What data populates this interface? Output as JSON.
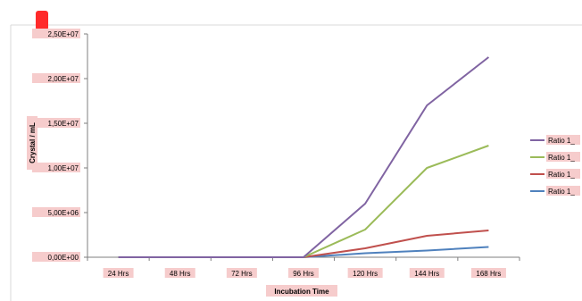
{
  "chart_data": {
    "type": "line",
    "title": "",
    "xlabel": "Incubation Time",
    "ylabel": "Crystal / mL",
    "categories": [
      "24 Hrs",
      "48 Hrs",
      "72 Hrs",
      "96 Hrs",
      "120 Hrs",
      "144 Hrs",
      "168 Hrs"
    ],
    "ylim": [
      0,
      25000000
    ],
    "yticks": [
      {
        "value": 0,
        "label": "0,00E+00"
      },
      {
        "value": 5000000,
        "label": "5,00E+06"
      },
      {
        "value": 10000000,
        "label": "1,00E+07"
      },
      {
        "value": 15000000,
        "label": "1,50E+07"
      },
      {
        "value": 20000000,
        "label": "2,00E+07"
      },
      {
        "value": 25000000,
        "label": "2,50E+07"
      }
    ],
    "series": [
      {
        "name": "Ratio 1_",
        "color": "#8064a2",
        "values": [
          0,
          0,
          0,
          0,
          6000000,
          17000000,
          22400000
        ]
      },
      {
        "name": "Ratio 1_",
        "color": "#9bbb59",
        "values": [
          0,
          0,
          0,
          0,
          3100000,
          10000000,
          12500000
        ]
      },
      {
        "name": "Ratio 1_",
        "color": "#c0504d",
        "values": [
          0,
          0,
          0,
          0,
          1000000,
          2400000,
          3000000
        ]
      },
      {
        "name": "Ratio 1_",
        "color": "#4f81bd",
        "values": [
          0,
          0,
          0,
          0,
          450000,
          750000,
          1150000
        ]
      }
    ],
    "grid": false,
    "legend": "right"
  }
}
